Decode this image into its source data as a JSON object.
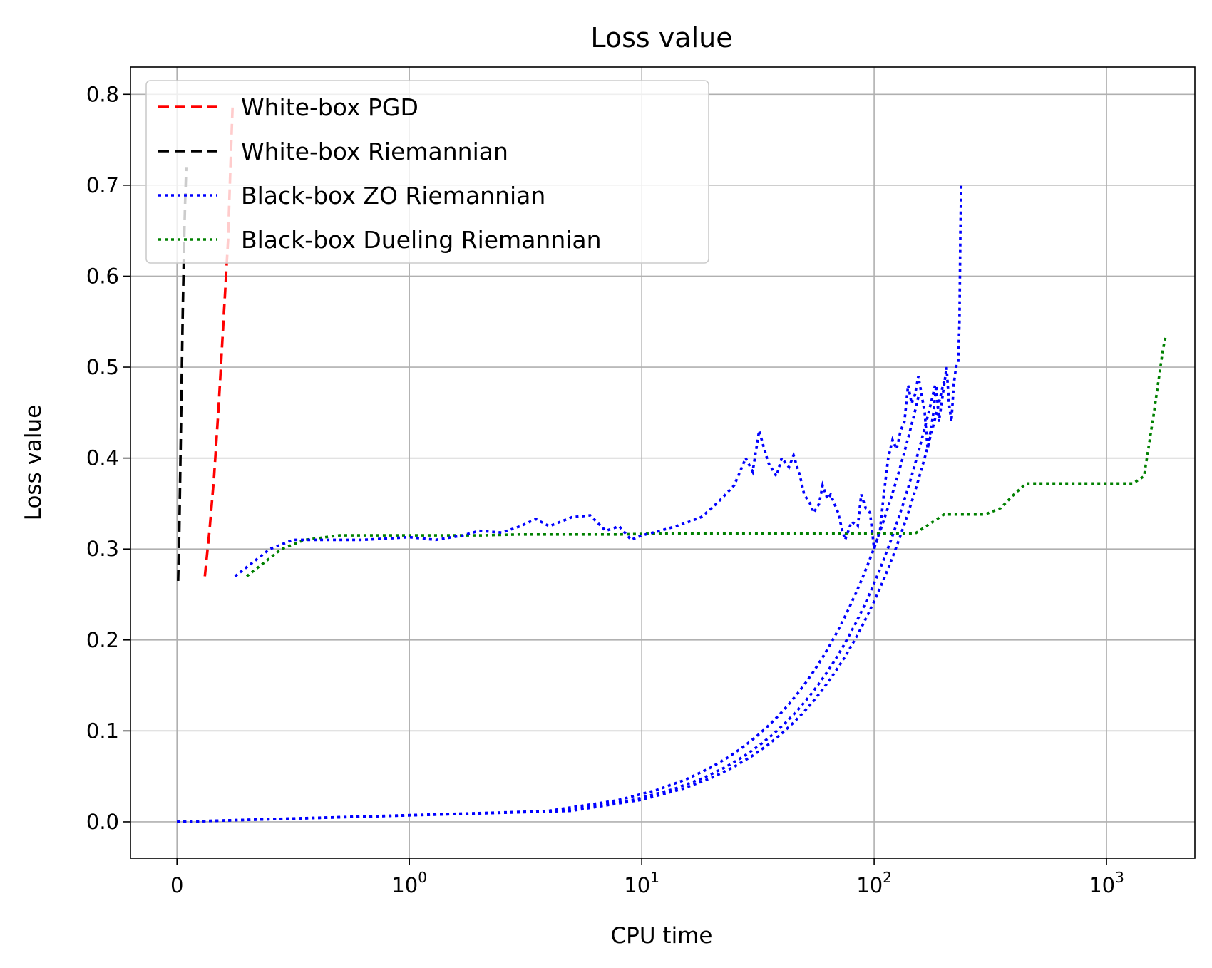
{
  "chart_data": {
    "type": "line",
    "title": "Loss value",
    "xlabel": "CPU time",
    "ylabel": "Loss value",
    "xscale": "symlog",
    "xlim": [
      -0.2,
      2400
    ],
    "ylim": [
      -0.04,
      0.83
    ],
    "grid": true,
    "legend_position": "top-left",
    "x_tick_labels": [
      {
        "value": 0,
        "base": "0",
        "exp": ""
      },
      {
        "value": 1,
        "base": "10",
        "exp": "0"
      },
      {
        "value": 10,
        "base": "10",
        "exp": "1"
      },
      {
        "value": 100,
        "base": "10",
        "exp": "2"
      },
      {
        "value": 1000,
        "base": "10",
        "exp": "3"
      }
    ],
    "y_ticks": [
      0.0,
      0.1,
      0.2,
      0.3,
      0.4,
      0.5,
      0.6,
      0.7,
      0.8
    ],
    "y_tick_labels": [
      "0.0",
      "0.1",
      "0.2",
      "0.3",
      "0.4",
      "0.5",
      "0.6",
      "0.7",
      "0.8"
    ],
    "series": [
      {
        "name": "White-box PGD",
        "color": "#ff0000",
        "style": "dashed",
        "x": [
          0.12,
          0.14,
          0.16,
          0.18,
          0.2,
          0.22,
          0.23,
          0.24
        ],
        "y": [
          0.27,
          0.32,
          0.38,
          0.46,
          0.55,
          0.64,
          0.72,
          0.79
        ]
      },
      {
        "name": "White-box Riemannian",
        "color": "#000000",
        "style": "dashed",
        "x": [
          0.005,
          0.01,
          0.015,
          0.02,
          0.025,
          0.03,
          0.035,
          0.04
        ],
        "y": [
          0.265,
          0.32,
          0.4,
          0.48,
          0.56,
          0.63,
          0.68,
          0.72
        ]
      },
      {
        "name": "Black-box ZO Riemannian",
        "color": "#0000ff",
        "style": "dotted",
        "x": [
          0.25,
          0.3,
          0.4,
          0.5,
          0.6,
          0.8,
          1.0,
          1.3,
          1.7,
          2.0,
          2.5,
          3.0,
          3.5,
          4.0,
          5.0,
          6.0,
          7.0,
          8.0,
          9.0,
          10.0,
          12.0,
          14.0,
          16.0,
          18.0,
          20.0,
          22.0,
          25.0,
          27.0,
          28.0,
          30.0,
          32.0,
          35.0,
          38.0,
          40.0,
          43.0,
          45.0,
          48.0,
          50.0,
          53.0,
          55.0,
          58.0,
          60.0,
          63.0,
          65.0,
          70.0,
          73.0,
          75.0,
          80.0,
          85.0,
          88.0,
          92.0,
          96.0,
          100.0,
          103.0,
          106.0,
          110.0,
          115.0,
          120.0,
          125.0,
          130.0,
          135.0,
          140.0,
          145.0,
          150.0,
          155.0,
          160.0,
          165.0,
          170.0,
          175.0,
          180.0,
          185.0,
          190.0,
          195.0,
          200.0,
          205.0,
          210.0,
          215.0,
          220.0,
          225.0,
          230.0,
          233.0,
          235.0,
          237.0
        ],
        "y": [
          0.27,
          0.28,
          0.3,
          0.31,
          0.31,
          0.31,
          0.313,
          0.31,
          0.315,
          0.32,
          0.318,
          0.325,
          0.333,
          0.325,
          0.335,
          0.337,
          0.32,
          0.325,
          0.31,
          0.315,
          0.32,
          0.325,
          0.33,
          0.335,
          0.345,
          0.355,
          0.37,
          0.39,
          0.4,
          0.385,
          0.43,
          0.395,
          0.38,
          0.4,
          0.39,
          0.403,
          0.38,
          0.36,
          0.35,
          0.34,
          0.35,
          0.37,
          0.355,
          0.36,
          0.34,
          0.32,
          0.31,
          0.33,
          0.325,
          0.36,
          0.345,
          0.34,
          0.3,
          0.31,
          0.32,
          0.36,
          0.4,
          0.42,
          0.41,
          0.43,
          0.44,
          0.48,
          0.46,
          0.47,
          0.49,
          0.47,
          0.45,
          0.41,
          0.43,
          0.45,
          0.48,
          0.44,
          0.46,
          0.48,
          0.5,
          0.46,
          0.44,
          0.48,
          0.5,
          0.505,
          0.55,
          0.65,
          0.7
        ]
      },
      {
        "name": "Black-box Dueling Riemannian",
        "color": "#008000",
        "style": "dotted",
        "x": [
          0.3,
          0.35,
          0.45,
          0.55,
          0.7,
          1.0,
          1.5,
          2.0,
          3.0,
          5.0,
          8.0,
          12.0,
          20.0,
          40.0,
          70.0,
          100.0,
          150.0,
          200.0,
          300.0,
          350.0,
          400.0,
          450.0,
          600.0,
          800.0,
          1000.0,
          1200.0,
          1300.0,
          1450.0,
          1600.0,
          1750.0,
          1800.0
        ],
        "y": [
          0.27,
          0.28,
          0.3,
          0.31,
          0.315,
          0.315,
          0.315,
          0.315,
          0.316,
          0.316,
          0.316,
          0.317,
          0.317,
          0.317,
          0.317,
          0.317,
          0.317,
          0.338,
          0.338,
          0.345,
          0.36,
          0.372,
          0.372,
          0.372,
          0.372,
          0.372,
          0.372,
          0.38,
          0.45,
          0.52,
          0.535
        ]
      }
    ],
    "linear_overlay": {
      "name": "Black-box ZO Riemannian",
      "color": "#0000ff",
      "style": "dotted",
      "strands": [
        {
          "x": [
            0.0,
            156.0
          ],
          "y": [
            0.0,
            0.47
          ]
        },
        {
          "x": [
            0.0,
            183.0
          ],
          "y": [
            0.0,
            0.48
          ]
        },
        {
          "x": [
            0.0,
            200.0
          ],
          "y": [
            0.0,
            0.485
          ]
        }
      ]
    }
  }
}
